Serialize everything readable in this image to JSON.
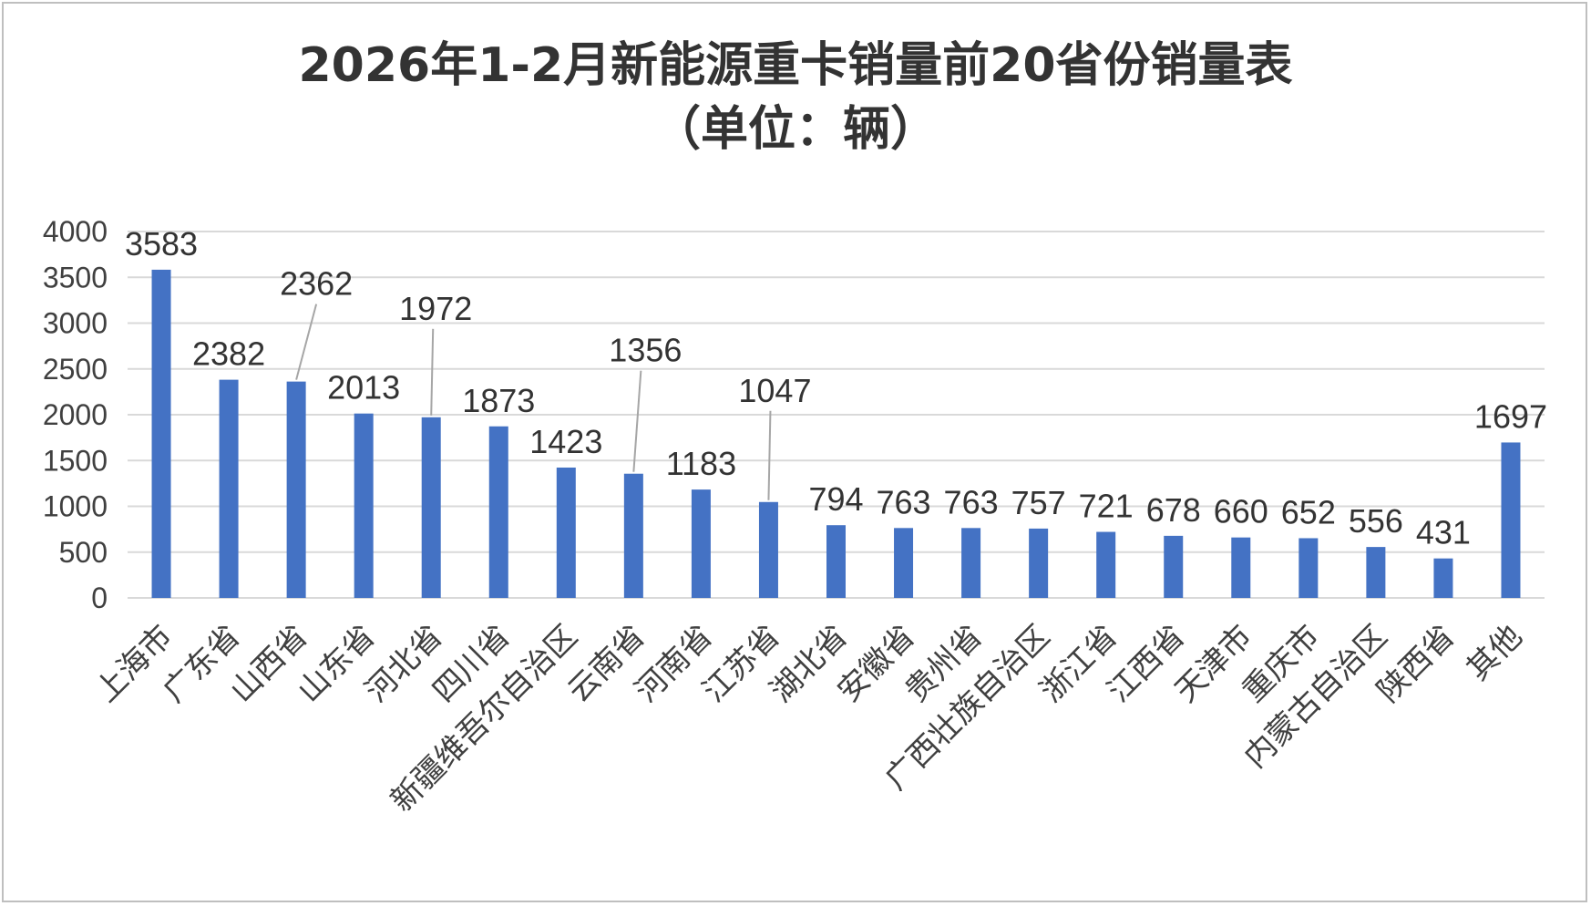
{
  "chart_data": {
    "type": "bar",
    "title": "2026年1-2月新能源重卡销量前20省份销量表",
    "subtitle": "（单位：辆）",
    "categories": [
      "上海市",
      "广东省",
      "山西省",
      "山东省",
      "河北省",
      "四川省",
      "新疆维吾尔自治区",
      "云南省",
      "河南省",
      "江苏省",
      "湖北省",
      "安徽省",
      "贵州省",
      "广西壮族自治区",
      "浙江省",
      "江西省",
      "天津市",
      "重庆市",
      "内蒙古自治区",
      "陕西省",
      "其他"
    ],
    "values": [
      3583,
      2382,
      2362,
      2013,
      1972,
      1873,
      1423,
      1356,
      1183,
      1047,
      794,
      763,
      763,
      757,
      721,
      678,
      660,
      652,
      556,
      431,
      1697
    ],
    "ylim": [
      0,
      4000
    ],
    "yticks": [
      0,
      500,
      1000,
      1500,
      2000,
      2500,
      3000,
      3500,
      4000
    ],
    "grid": true,
    "legend": "none",
    "bar_color": "#4472C4",
    "grid_color": "#d9d9d9",
    "leader_line_color": "#a6a6a6"
  }
}
